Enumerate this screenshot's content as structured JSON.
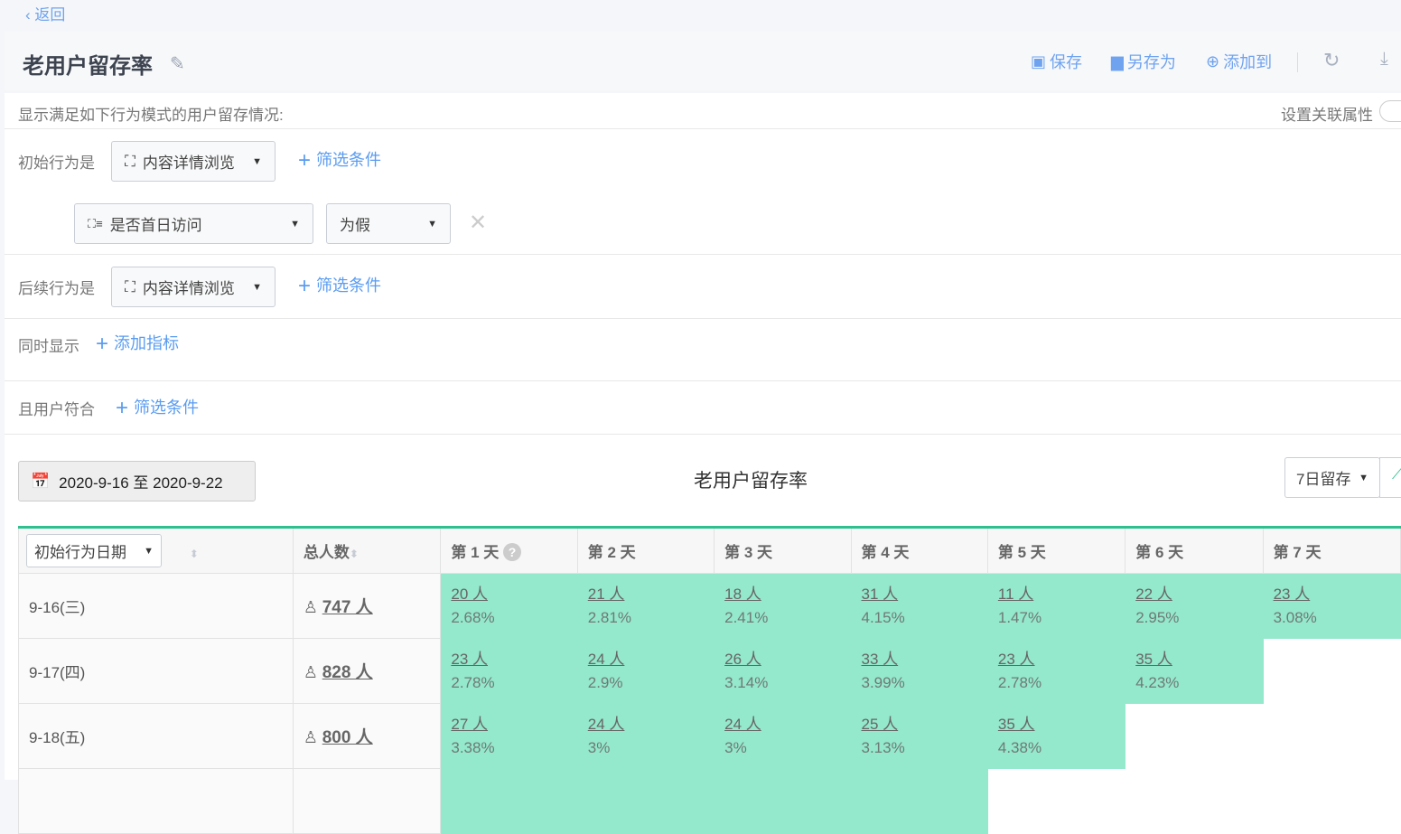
{
  "back_label": "返回",
  "title": "老用户留存率",
  "toolbar": {
    "save": "保存",
    "save_as": "另存为",
    "add_to": "添加到"
  },
  "description": "显示满足如下行为模式的用户留存情况:",
  "relation_label": "设置关联属性",
  "initial": {
    "label": "初始行为是",
    "event": "内容详情浏览",
    "filter_link": "筛选条件",
    "filter_property": "是否首日访问",
    "filter_value": "为假"
  },
  "followup": {
    "label": "后续行为是",
    "event": "内容详情浏览",
    "filter_link": "筛选条件"
  },
  "also_show": {
    "label": "同时显示",
    "link": "添加指标"
  },
  "user_match": {
    "label": "且用户符合",
    "link": "筛选条件"
  },
  "date_range": "2020-9-16 至 2020-9-22",
  "chart_title": "老用户留存率",
  "retention_select": "7日留存",
  "accent_color": "#2ec08e",
  "cell_color": "#94e8cc",
  "table": {
    "date_select": "初始行为日期",
    "total_header": "总人数",
    "day_headers": [
      "第 1 天",
      "第 2 天",
      "第 3 天",
      "第 4 天",
      "第 5 天",
      "第 6 天",
      "第 7 天"
    ],
    "rows": [
      {
        "date": "9-16(三)",
        "total": "747 人",
        "cells": [
          [
            "20 人",
            "2.68%"
          ],
          [
            "21 人",
            "2.81%"
          ],
          [
            "18 人",
            "2.41%"
          ],
          [
            "31 人",
            "4.15%"
          ],
          [
            "11 人",
            "1.47%"
          ],
          [
            "22 人",
            "2.95%"
          ],
          [
            "23 人",
            "3.08%"
          ]
        ]
      },
      {
        "date": "9-17(四)",
        "total": "828 人",
        "cells": [
          [
            "23 人",
            "2.78%"
          ],
          [
            "24 人",
            "2.9%"
          ],
          [
            "26 人",
            "3.14%"
          ],
          [
            "33 人",
            "3.99%"
          ],
          [
            "23 人",
            "2.78%"
          ],
          [
            "35 人",
            "4.23%"
          ]
        ]
      },
      {
        "date": "9-18(五)",
        "total": "800 人",
        "cells": [
          [
            "27 人",
            "3.38%"
          ],
          [
            "24 人",
            "3%"
          ],
          [
            "24 人",
            "3%"
          ],
          [
            "25 人",
            "3.13%"
          ],
          [
            "35 人",
            "4.38%"
          ]
        ]
      }
    ]
  }
}
